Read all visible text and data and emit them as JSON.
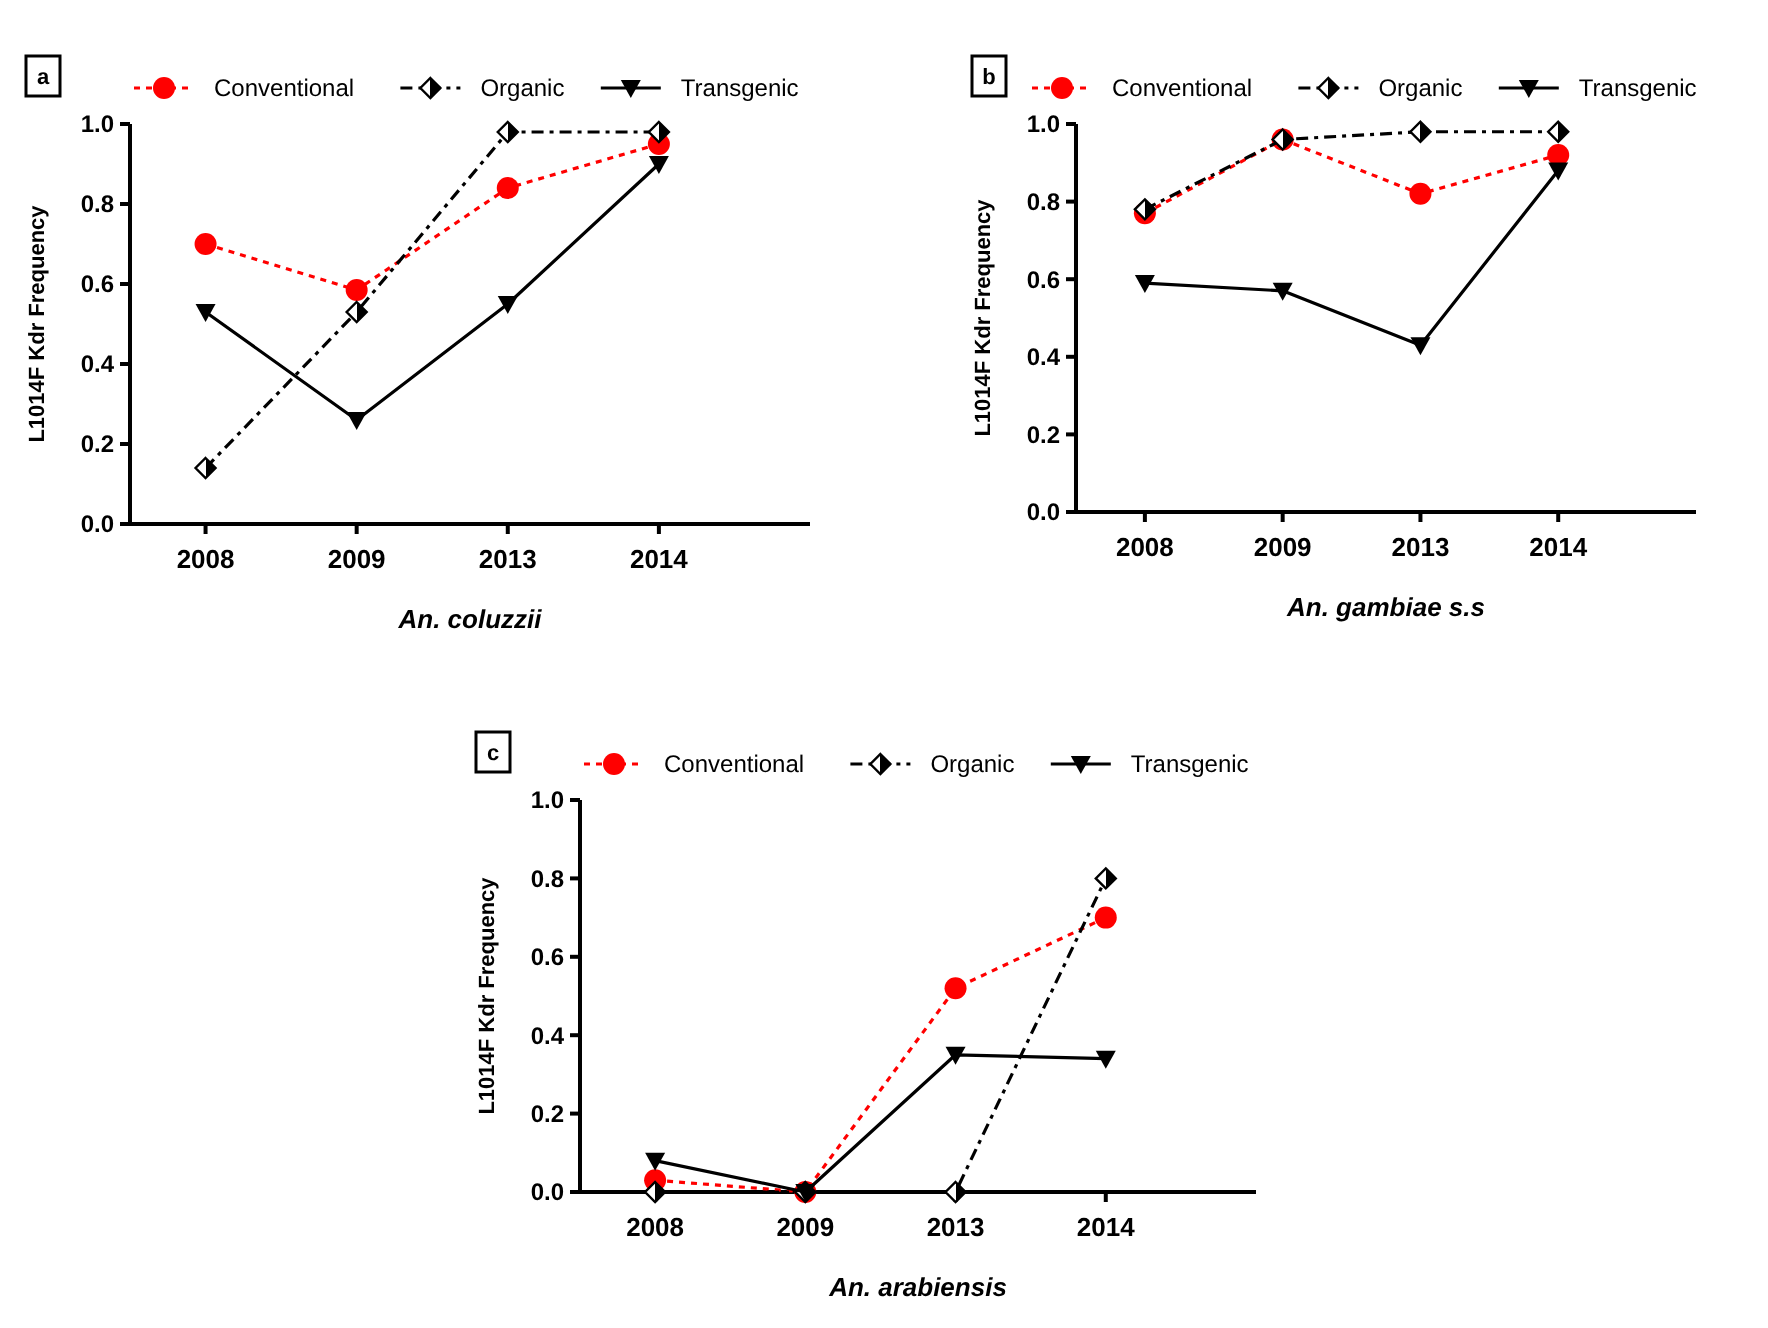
{
  "chart_data": [
    {
      "type": "line",
      "title": "a",
      "categories": [
        "2008",
        "2009",
        "2013",
        "2014"
      ],
      "xlabel": "An. coluzzii",
      "ylabel": "L1014F Kdr Frequency",
      "ylim": [
        0,
        1
      ],
      "yticks": [
        {
          "value": 0,
          "label": "0.0"
        },
        {
          "value": 0.2,
          "label": "0.2"
        },
        {
          "value": 0.4,
          "label": "0.4"
        },
        {
          "value": 0.6,
          "label": "0.6"
        },
        {
          "value": 0.8,
          "label": "0.8"
        },
        {
          "value": 1,
          "label": "1.0"
        }
      ],
      "legend": "top",
      "grid": false,
      "series": [
        {
          "name": "Conventional",
          "color": "#ff0000",
          "marker": "circle",
          "line_style": "dotted",
          "values": [
            0.7,
            0.585,
            0.84,
            0.95
          ]
        },
        {
          "name": "Organic",
          "color": "#000000",
          "marker": "diamond",
          "line_style": "dashed",
          "values": [
            0.14,
            0.53,
            0.98,
            0.98
          ]
        },
        {
          "name": "Transgenic",
          "color": "#000000",
          "marker": "triangle",
          "line_style": "solid",
          "values": [
            0.53,
            0.26,
            0.55,
            0.9
          ]
        }
      ]
    },
    {
      "type": "line",
      "title": "b",
      "categories": [
        "2008",
        "2009",
        "2013",
        "2014"
      ],
      "xlabel": "An. gambiae s.s",
      "ylabel": "L1014F Kdr Frequency",
      "ylim": [
        0,
        1
      ],
      "yticks": [
        {
          "value": 0,
          "label": "0.0"
        },
        {
          "value": 0.2,
          "label": "0.2"
        },
        {
          "value": 0.4,
          "label": "0.4"
        },
        {
          "value": 0.6,
          "label": "0.6"
        },
        {
          "value": 0.8,
          "label": "0.8"
        },
        {
          "value": 1,
          "label": "1.0"
        }
      ],
      "legend": "top",
      "grid": false,
      "series": [
        {
          "name": "Conventional",
          "color": "#ff0000",
          "marker": "circle",
          "line_style": "dotted",
          "values": [
            0.77,
            0.96,
            0.82,
            0.92
          ]
        },
        {
          "name": "Organic",
          "color": "#000000",
          "marker": "diamond",
          "line_style": "dashed",
          "values": [
            0.78,
            0.96,
            0.98,
            0.98
          ]
        },
        {
          "name": "Transgenic",
          "color": "#000000",
          "marker": "triangle",
          "line_style": "solid",
          "values": [
            0.59,
            0.57,
            0.43,
            0.88
          ]
        }
      ]
    },
    {
      "type": "line",
      "title": "c",
      "categories": [
        "2008",
        "2009",
        "2013",
        "2014"
      ],
      "xlabel": "An. arabiensis",
      "ylabel": "L1014F Kdr Frequency",
      "ylim": [
        0,
        1
      ],
      "yticks": [
        {
          "value": 0,
          "label": "0.0"
        },
        {
          "value": 0.2,
          "label": "0.2"
        },
        {
          "value": 0.4,
          "label": "0.4"
        },
        {
          "value": 0.6,
          "label": "0.6"
        },
        {
          "value": 0.8,
          "label": "0.8"
        },
        {
          "value": 1,
          "label": "1.0"
        }
      ],
      "legend": "top",
      "grid": false,
      "series": [
        {
          "name": "Conventional",
          "color": "#ff0000",
          "marker": "circle",
          "line_style": "dotted",
          "values": [
            0.03,
            0,
            0.52,
            0.7
          ]
        },
        {
          "name": "Organic",
          "color": "#000000",
          "marker": "diamond",
          "line_style": "dashed",
          "values": [
            0,
            0,
            0,
            0.8
          ]
        },
        {
          "name": "Transgenic",
          "color": "#000000",
          "marker": "triangle",
          "line_style": "solid",
          "values": [
            0.08,
            0,
            0.35,
            0.34
          ]
        }
      ]
    }
  ]
}
